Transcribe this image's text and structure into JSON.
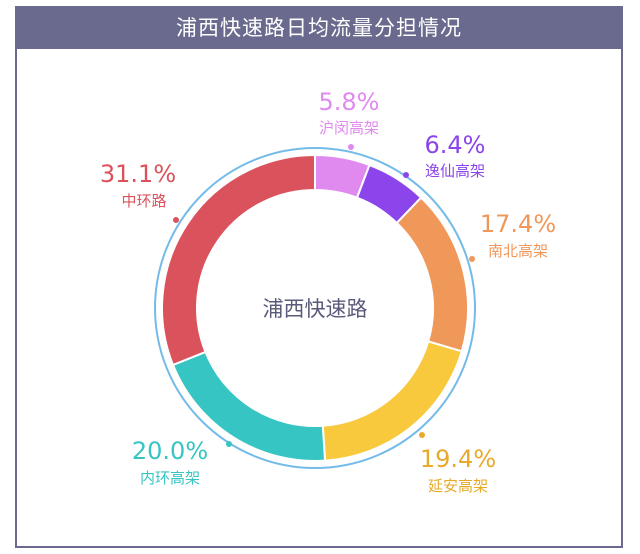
{
  "title": "浦西快速路日均流量分担情况",
  "chart_data": {
    "type": "pie",
    "variant": "donut",
    "center_label": "浦西快速路",
    "title": "浦西快速路日均流量分担情况",
    "unit": "%",
    "slices": [
      {
        "name": "沪闵高架",
        "value": 5.8,
        "label": "5.8%",
        "color": "#e08af0"
      },
      {
        "name": "逸仙高架",
        "value": 6.4,
        "label": "6.4%",
        "color": "#8b45ea"
      },
      {
        "name": "南北高架",
        "value": 17.4,
        "label": "17.4%",
        "color": "#f0975a"
      },
      {
        "name": "延安高架",
        "value": 19.4,
        "label": "19.4%",
        "color": "#f8c93c"
      },
      {
        "name": "内环高架",
        "value": 20.0,
        "label": "20.0%",
        "color": "#36c5c3"
      },
      {
        "name": "中环路",
        "value": 31.1,
        "label": "31.1%",
        "color": "#d9525c"
      }
    ],
    "label_colors": [
      "#e08af0",
      "#8b45ea",
      "#f0975a",
      "#e7aa2a",
      "#36c5c3",
      "#d9525c"
    ],
    "ring_color": "#74bbea",
    "frame_color": "#6a6a8e"
  }
}
